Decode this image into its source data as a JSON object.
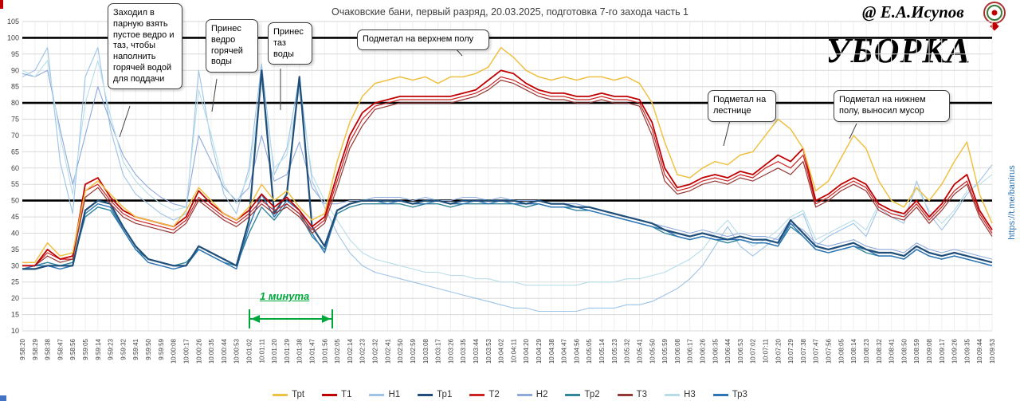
{
  "header": {
    "title": "Очаковские бани, первый разряд, 20.03.2025, подготовка 7-го захода часть 1",
    "author": "@ Е.А.Исупов",
    "watermark": "УБОРКА",
    "link": "https://t.me/banirus"
  },
  "annotations": [
    {
      "text": "Заходил в парную взять пустое ведро и таз, чтобы наполнить горячей водой для поддачи"
    },
    {
      "text": "Принес ведро горячей воды"
    },
    {
      "text": "Принес таз воды"
    },
    {
      "text": "Подметал на верхнем полу"
    },
    {
      "text": "Подметал на лестнице"
    },
    {
      "text": "Подметал на нижнем полу, выносил мусор"
    },
    {
      "text": "1 минута"
    }
  ],
  "chart_data": {
    "type": "line",
    "title": "Очаковские бани, первый разряд, 20.03.2025, подготовка 7-го захода часть 1",
    "ylim": [
      10,
      105
    ],
    "ytick_step": 5,
    "bold_gridlines": [
      100,
      80,
      50
    ],
    "legend_position": "bottom",
    "grid": true,
    "x": [
      "9:58:20",
      "9:58:29",
      "9:58:38",
      "9:58:47",
      "9:58:56",
      "9:59:05",
      "9:59:14",
      "9:59:23",
      "9:59:32",
      "9:59:41",
      "9:59:50",
      "9:59:59",
      "10:00:08",
      "10:00:17",
      "10:00:26",
      "10:00:35",
      "10:00:44",
      "10:00:53",
      "10:01:02",
      "10:01:11",
      "10:01:20",
      "10:01:29",
      "10:01:38",
      "10:01:47",
      "10:01:56",
      "10:02:05",
      "10:02:14",
      "10:02:23",
      "10:02:32",
      "10:02:41",
      "10:02:50",
      "10:02:59",
      "10:03:08",
      "10:03:17",
      "10:03:26",
      "10:03:35",
      "10:03:44",
      "10:03:53",
      "10:04:02",
      "10:04:11",
      "10:04:20",
      "10:04:29",
      "10:04:38",
      "10:04:47",
      "10:04:56",
      "10:05:05",
      "10:05:14",
      "10:05:23",
      "10:05:32",
      "10:05:41",
      "10:05:50",
      "10:05:59",
      "10:06:08",
      "10:06:17",
      "10:06:26",
      "10:06:35",
      "10:06:44",
      "10:06:53",
      "10:07:02",
      "10:07:11",
      "10:07:20",
      "10:07:29",
      "10:07:38",
      "10:07:47",
      "10:07:56",
      "10:08:05",
      "10:08:14",
      "10:08:23",
      "10:08:32",
      "10:08:41",
      "10:08:50",
      "10:08:59",
      "10:09:08",
      "10:09:17",
      "10:09:26",
      "10:09:35",
      "10:09:44",
      "10:09:53"
    ],
    "series": [
      {
        "name": "Трt",
        "color": "#EFC143",
        "values": [
          31,
          31,
          37,
          33,
          34,
          53,
          56,
          52,
          48,
          45,
          44,
          43,
          42,
          47,
          54,
          50,
          46,
          44,
          48,
          55,
          50,
          53,
          48,
          44,
          46,
          62,
          74,
          82,
          86,
          87,
          88,
          87,
          88,
          86,
          88,
          88,
          89,
          91,
          97,
          94,
          90,
          88,
          87,
          88,
          87,
          88,
          88,
          87,
          88,
          86,
          80,
          68,
          58,
          57,
          60,
          62,
          61,
          64,
          65,
          70,
          75,
          72,
          66,
          53,
          56,
          63,
          70,
          66,
          56,
          50,
          48,
          54,
          50,
          55,
          62,
          68,
          52,
          43
        ]
      },
      {
        "name": "Т1",
        "color": "#C00000",
        "values": [
          30,
          30,
          35,
          32,
          33,
          55,
          57,
          51,
          47,
          45,
          44,
          43,
          42,
          45,
          53,
          49,
          46,
          44,
          47,
          52,
          48,
          51,
          47,
          42,
          45,
          58,
          70,
          77,
          80,
          81,
          82,
          82,
          82,
          82,
          82,
          83,
          84,
          87,
          90,
          89,
          86,
          84,
          83,
          83,
          82,
          82,
          83,
          82,
          82,
          81,
          74,
          60,
          54,
          55,
          57,
          58,
          57,
          59,
          58,
          61,
          64,
          62,
          66,
          50,
          52,
          55,
          57,
          55,
          49,
          47,
          46,
          50,
          45,
          49,
          55,
          58,
          47,
          41
        ]
      },
      {
        "name": "Н1",
        "color": "#9DC3E6",
        "values": [
          88,
          90,
          97,
          62,
          46,
          88,
          97,
          72,
          58,
          52,
          49,
          46,
          44,
          46,
          90,
          68,
          52,
          46,
          60,
          92,
          58,
          66,
          88,
          56,
          48,
          40,
          34,
          30,
          28,
          27,
          26,
          25,
          24,
          23,
          22,
          21,
          20,
          19,
          18,
          17,
          17,
          16,
          16,
          16,
          16,
          17,
          17,
          17,
          18,
          18,
          19,
          21,
          23,
          26,
          30,
          36,
          42,
          36,
          33,
          36,
          39,
          44,
          46,
          36,
          39,
          41,
          43,
          39,
          48,
          45,
          43,
          56,
          46,
          41,
          46,
          52,
          56,
          61
        ]
      },
      {
        "name": "Тр1",
        "color": "#1F4E79",
        "values": [
          29,
          29,
          30,
          30,
          30,
          47,
          50,
          49,
          42,
          36,
          32,
          31,
          30,
          30,
          36,
          34,
          32,
          30,
          44,
          90,
          46,
          52,
          88,
          42,
          36,
          47,
          49,
          50,
          50,
          50,
          50,
          49,
          50,
          50,
          49,
          50,
          50,
          50,
          50,
          50,
          49,
          50,
          49,
          49,
          48,
          48,
          47,
          46,
          45,
          44,
          43,
          41,
          40,
          39,
          40,
          39,
          38,
          39,
          38,
          38,
          37,
          44,
          40,
          36,
          35,
          36,
          37,
          35,
          34,
          34,
          33,
          36,
          34,
          33,
          34,
          33,
          32,
          31
        ]
      },
      {
        "name": "Т2",
        "color": "#CC2222",
        "values": [
          30,
          30,
          34,
          32,
          32,
          53,
          55,
          50,
          46,
          44,
          43,
          42,
          41,
          44,
          51,
          48,
          45,
          43,
          46,
          50,
          47,
          49,
          46,
          41,
          44,
          56,
          68,
          75,
          79,
          80,
          81,
          81,
          81,
          81,
          81,
          82,
          83,
          85,
          88,
          87,
          85,
          83,
          82,
          82,
          81,
          81,
          82,
          81,
          81,
          80,
          72,
          58,
          53,
          54,
          56,
          57,
          56,
          58,
          57,
          60,
          62,
          60,
          64,
          49,
          51,
          54,
          56,
          54,
          48,
          46,
          45,
          49,
          44,
          48,
          53,
          56,
          46,
          40
        ]
      },
      {
        "name": "Н2",
        "color": "#8EA9DB",
        "values": [
          89,
          88,
          90,
          72,
          55,
          70,
          85,
          74,
          64,
          58,
          54,
          51,
          49,
          48,
          70,
          62,
          54,
          50,
          54,
          70,
          56,
          58,
          68,
          54,
          49,
          49,
          50,
          50,
          51,
          51,
          51,
          50,
          51,
          50,
          50,
          51,
          51,
          50,
          51,
          50,
          50,
          50,
          49,
          49,
          49,
          48,
          47,
          46,
          45,
          44,
          43,
          42,
          41,
          40,
          41,
          40,
          39,
          40,
          39,
          39,
          38,
          43,
          41,
          37,
          36,
          37,
          38,
          36,
          35,
          35,
          34,
          37,
          35,
          34,
          35,
          34,
          33,
          32
        ]
      },
      {
        "name": "Тр2",
        "color": "#31859C",
        "values": [
          30,
          30,
          31,
          30,
          31,
          45,
          48,
          47,
          41,
          35,
          32,
          31,
          30,
          31,
          35,
          33,
          31,
          30,
          40,
          48,
          44,
          49,
          46,
          39,
          35,
          46,
          48,
          49,
          49,
          49,
          49,
          48,
          49,
          49,
          48,
          49,
          49,
          49,
          49,
          49,
          48,
          49,
          48,
          48,
          47,
          47,
          46,
          45,
          44,
          43,
          42,
          40,
          39,
          38,
          39,
          38,
          37,
          38,
          37,
          37,
          36,
          42,
          39,
          35,
          34,
          35,
          36,
          34,
          33,
          33,
          32,
          35,
          33,
          32,
          33,
          32,
          31,
          30
        ]
      },
      {
        "name": "Т3",
        "color": "#953735",
        "values": [
          30,
          30,
          33,
          31,
          32,
          51,
          54,
          49,
          45,
          43,
          42,
          41,
          40,
          43,
          50,
          47,
          44,
          42,
          45,
          49,
          46,
          48,
          45,
          40,
          43,
          54,
          66,
          73,
          78,
          79,
          80,
          80,
          80,
          80,
          80,
          81,
          82,
          84,
          87,
          86,
          84,
          82,
          81,
          81,
          80,
          80,
          81,
          80,
          80,
          79,
          70,
          56,
          52,
          53,
          55,
          56,
          55,
          57,
          56,
          58,
          60,
          58,
          62,
          48,
          50,
          53,
          55,
          53,
          47,
          45,
          44,
          48,
          43,
          47,
          52,
          55,
          45,
          39
        ]
      },
      {
        "name": "Н3",
        "color": "#B7DEE8",
        "values": [
          90,
          88,
          93,
          70,
          52,
          80,
          93,
          76,
          62,
          56,
          52,
          49,
          47,
          48,
          84,
          70,
          55,
          49,
          58,
          86,
          60,
          64,
          84,
          58,
          50,
          44,
          38,
          34,
          32,
          31,
          30,
          29,
          28,
          28,
          27,
          27,
          26,
          26,
          25,
          25,
          24,
          24,
          24,
          24,
          24,
          25,
          25,
          25,
          26,
          26,
          27,
          28,
          30,
          32,
          35,
          40,
          44,
          39,
          36,
          38,
          41,
          45,
          47,
          38,
          40,
          42,
          44,
          41,
          49,
          47,
          45,
          54,
          47,
          43,
          47,
          53,
          55,
          58
        ]
      },
      {
        "name": "Тр3",
        "color": "#2E75B6",
        "values": [
          29,
          30,
          30,
          29,
          30,
          46,
          49,
          48,
          41,
          35,
          31,
          30,
          29,
          30,
          35,
          33,
          31,
          29,
          42,
          52,
          45,
          50,
          47,
          40,
          34,
          47,
          49,
          50,
          50,
          49,
          50,
          49,
          49,
          50,
          49,
          49,
          50,
          49,
          50,
          49,
          49,
          49,
          48,
          48,
          48,
          47,
          46,
          45,
          44,
          43,
          42,
          41,
          39,
          38,
          39,
          38,
          38,
          38,
          37,
          37,
          36,
          43,
          39,
          35,
          34,
          35,
          36,
          35,
          33,
          33,
          32,
          35,
          33,
          32,
          33,
          32,
          31,
          30
        ]
      }
    ]
  }
}
